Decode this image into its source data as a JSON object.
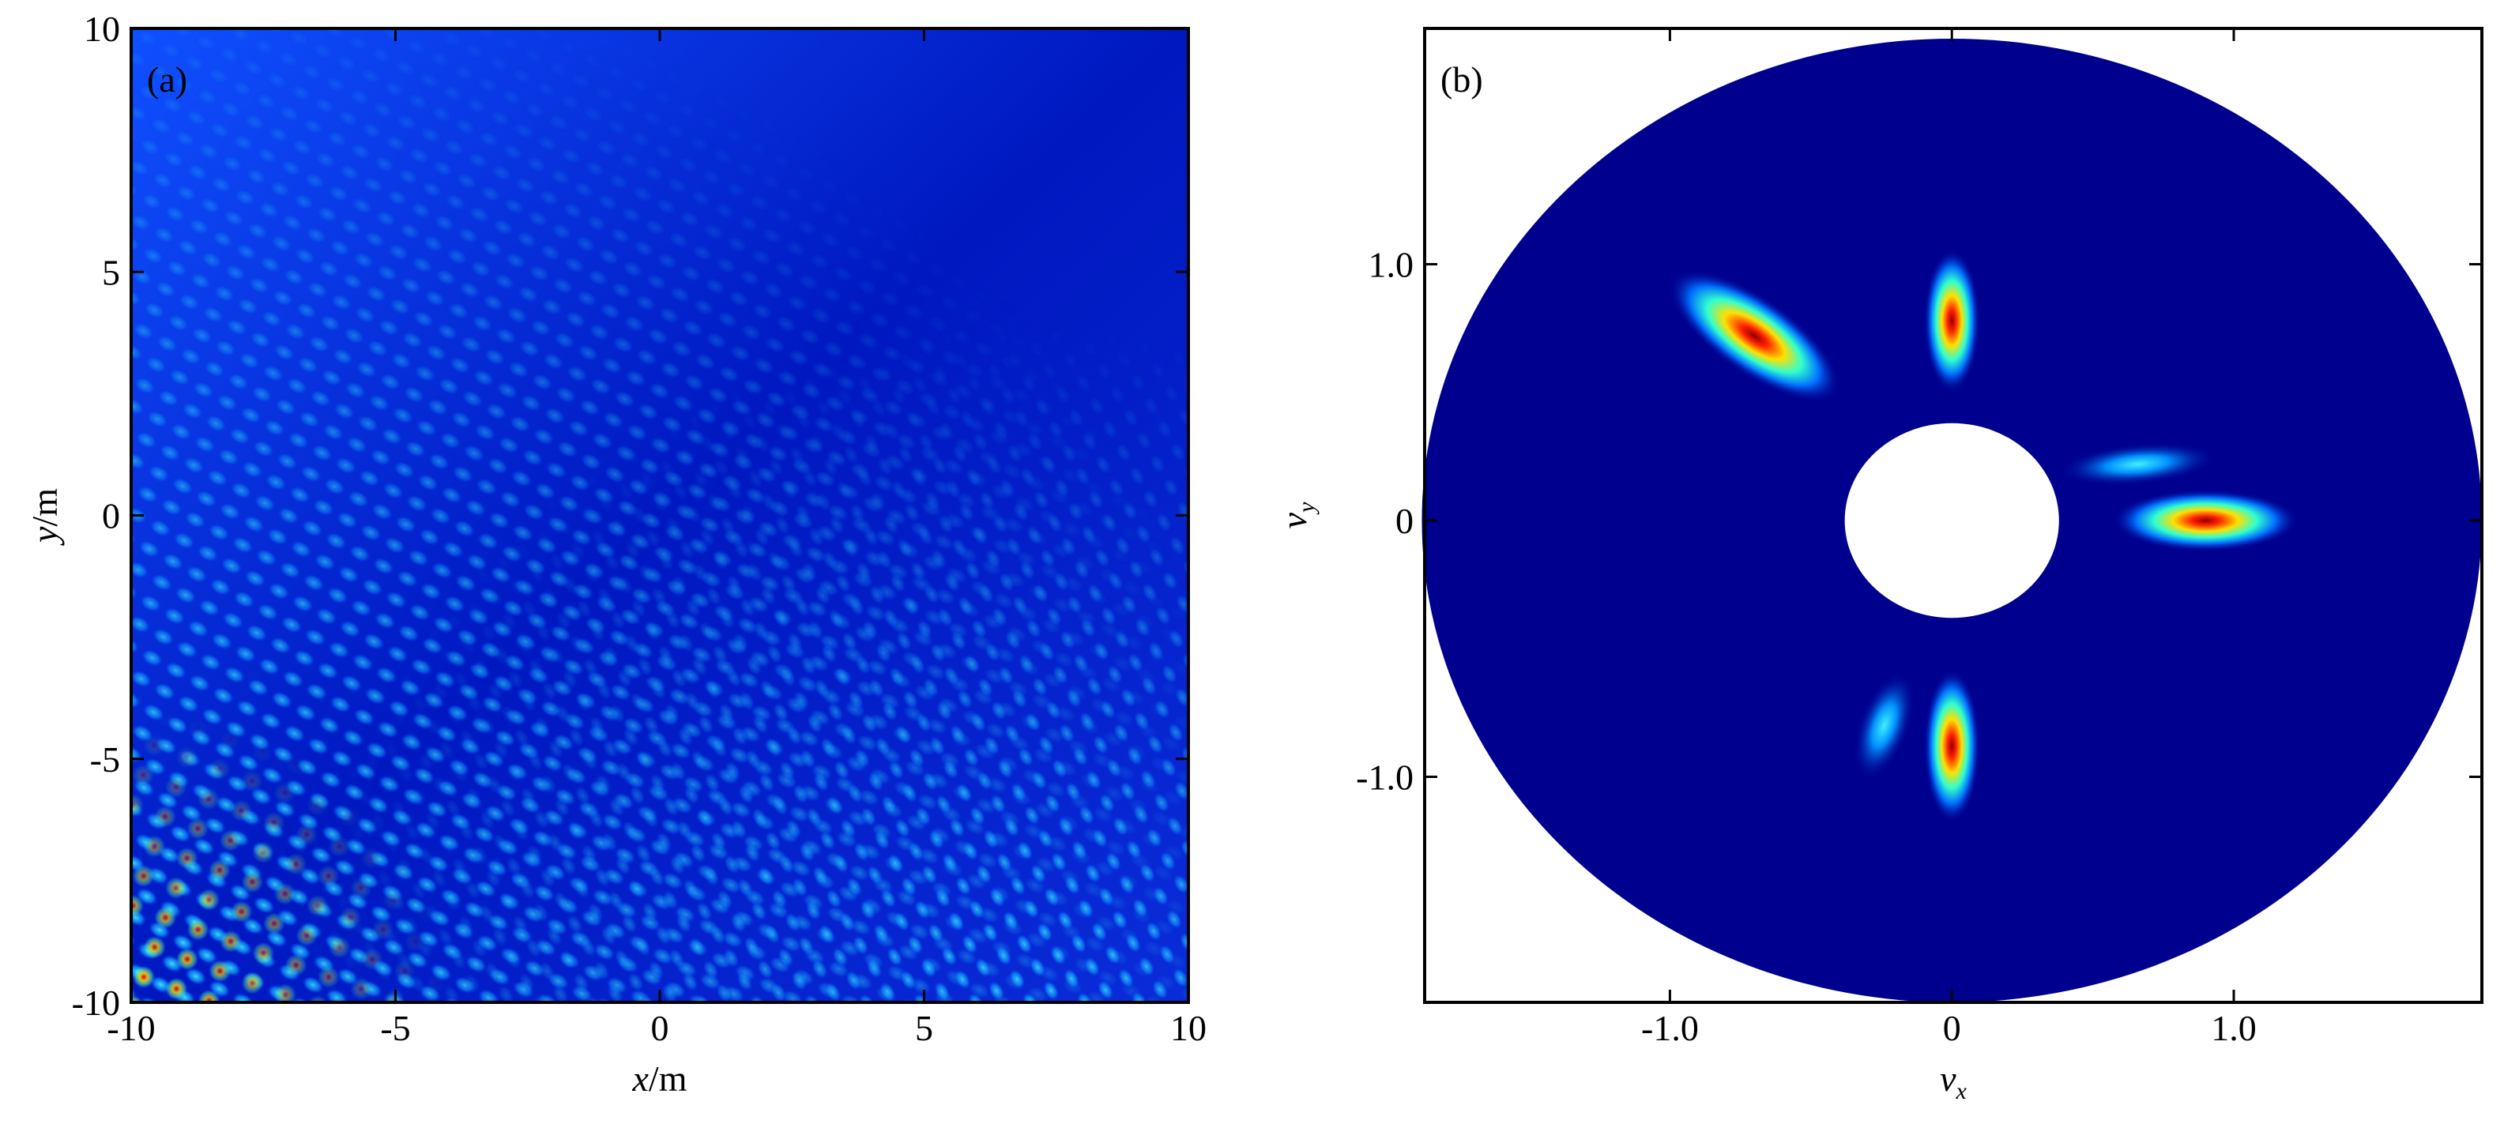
{
  "chart_data": [
    {
      "type": "heatmap",
      "panel_label": "(a)",
      "colormap": "jet",
      "x_label": [
        "x",
        "/m"
      ],
      "y_label": [
        "y",
        "/m"
      ],
      "xlim": [
        -10,
        10
      ],
      "xticks": [
        -10,
        -5,
        0,
        5,
        10
      ],
      "ylim": [
        -10,
        10
      ],
      "yticks": [
        -10,
        -5,
        0,
        5,
        10
      ]
    },
    {
      "type": "disk_heatmap",
      "panel_label": "(b)",
      "colormap": "jet",
      "x_label": [
        "v",
        "x"
      ],
      "y_label": [
        "v",
        "y"
      ],
      "xlim": [
        -1.87,
        1.88
      ],
      "xticks": [
        {
          "value": -1,
          "label": "-1.0"
        },
        0,
        {
          "value": 1,
          "label": "1.0"
        }
      ],
      "ylim": [
        -1.88,
        1.92
      ],
      "yticks": [
        {
          "value": -1,
          "label": "-1.0"
        },
        0,
        {
          "value": 1,
          "label": "1.0"
        }
      ],
      "outer_radius": 1.88,
      "inner_radius": 0.38,
      "peaks": [
        {
          "x": -0.7,
          "y": 0.72,
          "sx": 0.36,
          "sy": 0.15,
          "angle": -35,
          "peak": 1
        },
        {
          "x": 0,
          "y": 0.78,
          "sx": 0.1,
          "sy": 0.28,
          "angle": 0,
          "peak": 1
        },
        {
          "x": 0.9,
          "y": 0,
          "sx": 0.33,
          "sy": 0.12,
          "angle": 0,
          "peak": 1
        },
        {
          "x": 0,
          "y": -0.88,
          "sx": 0.1,
          "sy": 0.3,
          "angle": 0,
          "peak": 1
        },
        {
          "x": 0.66,
          "y": 0.22,
          "sx": 0.28,
          "sy": 0.08,
          "angle": 5,
          "peak": 0.35
        },
        {
          "x": -0.24,
          "y": -0.8,
          "sx": 0.09,
          "sy": 0.22,
          "angle": -20,
          "peak": 0.35
        }
      ]
    }
  ]
}
